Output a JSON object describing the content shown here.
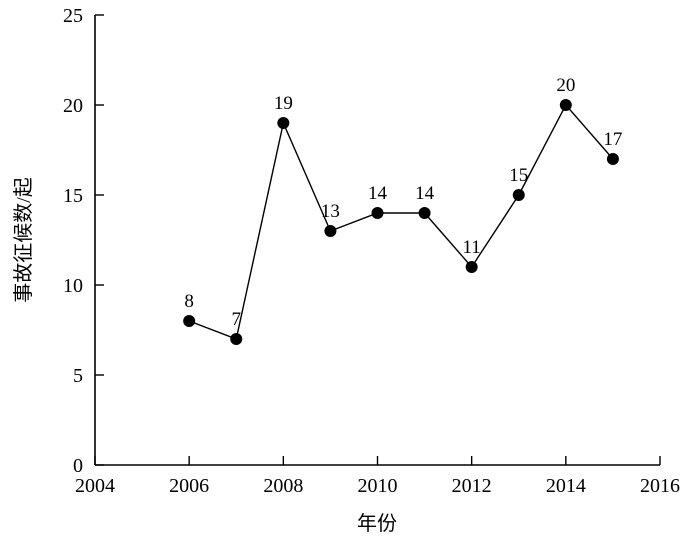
{
  "chart_data": {
    "type": "line",
    "title": "",
    "xlabel": "年份",
    "ylabel": "事故征候数/起",
    "x": [
      2006,
      2007,
      2008,
      2009,
      2010,
      2011,
      2012,
      2013,
      2014,
      2015
    ],
    "values": [
      8,
      7,
      19,
      13,
      14,
      14,
      11,
      15,
      20,
      17
    ],
    "point_labels": [
      "8",
      "7",
      "19",
      "13",
      "14",
      "14",
      "11",
      "15",
      "20",
      "17"
    ],
    "xlim": [
      2004,
      2016
    ],
    "ylim": [
      0,
      25
    ],
    "x_ticks": [
      2004,
      2006,
      2008,
      2010,
      2012,
      2014,
      2016
    ],
    "y_ticks": [
      0,
      5,
      10,
      15,
      20,
      25
    ],
    "grid": "off",
    "legend": "none",
    "line_color": "#000000",
    "marker_color": "#000000",
    "background_color": "#ffffff"
  }
}
